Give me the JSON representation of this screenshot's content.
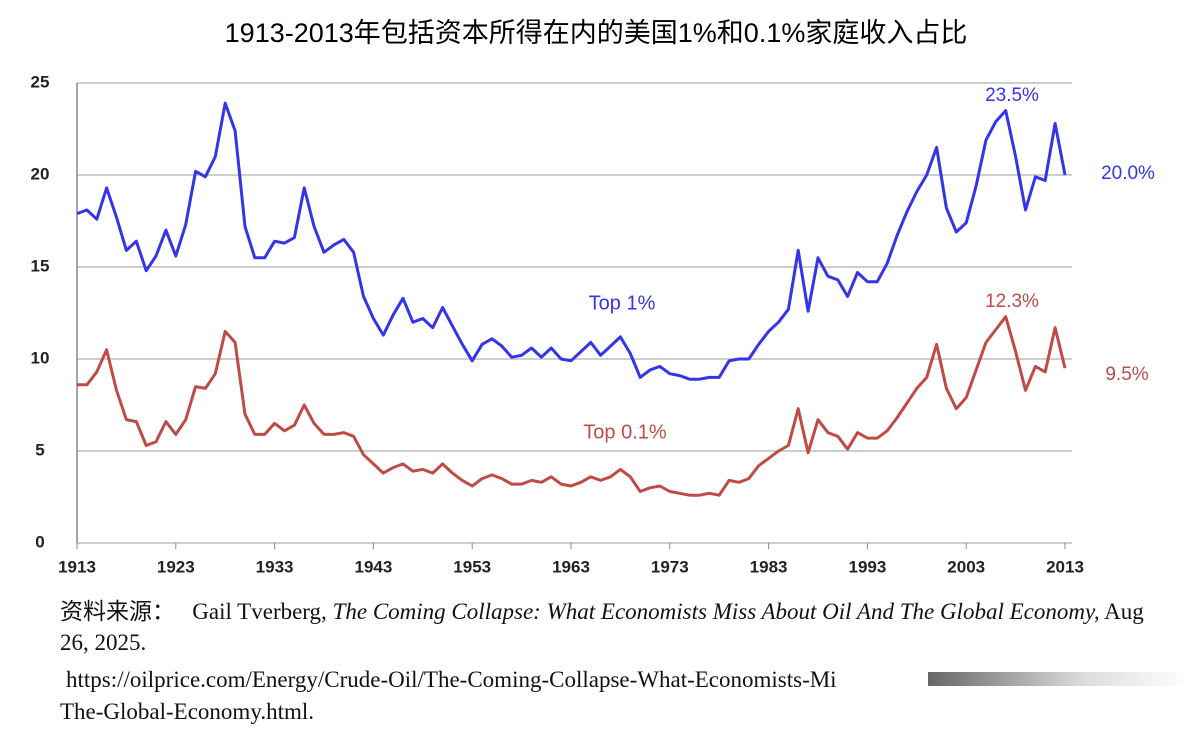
{
  "chart_data": {
    "type": "line",
    "title": "1913-2013年包括资本所得在内的美国1%和0.1%家庭收入占比",
    "x": [
      1913,
      1914,
      1915,
      1916,
      1917,
      1918,
      1919,
      1920,
      1921,
      1922,
      1923,
      1924,
      1925,
      1926,
      1927,
      1928,
      1929,
      1930,
      1931,
      1932,
      1933,
      1934,
      1935,
      1936,
      1937,
      1938,
      1939,
      1940,
      1941,
      1942,
      1943,
      1944,
      1945,
      1946,
      1947,
      1948,
      1949,
      1950,
      1951,
      1952,
      1953,
      1954,
      1955,
      1956,
      1957,
      1958,
      1959,
      1960,
      1961,
      1962,
      1963,
      1964,
      1965,
      1966,
      1967,
      1968,
      1969,
      1970,
      1971,
      1972,
      1973,
      1974,
      1975,
      1976,
      1977,
      1978,
      1979,
      1980,
      1981,
      1982,
      1983,
      1984,
      1985,
      1986,
      1987,
      1988,
      1989,
      1990,
      1991,
      1992,
      1993,
      1994,
      1995,
      1996,
      1997,
      1998,
      1999,
      2000,
      2001,
      2002,
      2003,
      2004,
      2005,
      2006,
      2007,
      2008,
      2009,
      2010,
      2011,
      2012,
      2013
    ],
    "series": [
      {
        "name": "Top 1%",
        "color": "#3434e8",
        "values": [
          17.9,
          18.1,
          17.6,
          19.3,
          17.7,
          15.9,
          16.4,
          14.8,
          15.6,
          17.0,
          15.6,
          17.3,
          20.2,
          19.9,
          21.0,
          23.9,
          22.4,
          17.2,
          15.5,
          15.5,
          16.4,
          16.3,
          16.6,
          19.3,
          17.2,
          15.8,
          16.2,
          16.5,
          15.8,
          13.4,
          12.2,
          11.3,
          12.4,
          13.3,
          12.0,
          12.2,
          11.7,
          12.8,
          11.8,
          10.8,
          9.9,
          10.8,
          11.1,
          10.7,
          10.1,
          10.2,
          10.6,
          10.1,
          10.6,
          10.0,
          9.9,
          10.4,
          10.9,
          10.2,
          10.7,
          11.2,
          10.3,
          9.0,
          9.4,
          9.6,
          9.2,
          9.1,
          8.9,
          8.9,
          9.0,
          9.0,
          9.9,
          10.0,
          10.0,
          10.8,
          11.5,
          12.0,
          12.7,
          15.9,
          12.6,
          15.5,
          14.5,
          14.3,
          13.4,
          14.7,
          14.2,
          14.2,
          15.2,
          16.7,
          18.0,
          19.1,
          20.0,
          21.5,
          18.2,
          16.9,
          17.4,
          19.4,
          21.9,
          22.9,
          23.5,
          21.0,
          18.1,
          19.9,
          19.7,
          22.8,
          20.0
        ]
      },
      {
        "name": "Top 0.1%",
        "color": "#be4b48",
        "values": [
          8.6,
          8.6,
          9.3,
          10.5,
          8.3,
          6.7,
          6.6,
          5.3,
          5.5,
          6.6,
          5.9,
          6.7,
          8.5,
          8.4,
          9.2,
          11.5,
          10.9,
          7.0,
          5.9,
          5.9,
          6.5,
          6.1,
          6.4,
          7.5,
          6.5,
          5.9,
          5.9,
          6.0,
          5.8,
          4.8,
          4.3,
          3.8,
          4.1,
          4.3,
          3.9,
          4.0,
          3.8,
          4.3,
          3.8,
          3.4,
          3.1,
          3.5,
          3.7,
          3.5,
          3.2,
          3.2,
          3.4,
          3.3,
          3.6,
          3.2,
          3.1,
          3.3,
          3.6,
          3.4,
          3.6,
          4.0,
          3.6,
          2.8,
          3.0,
          3.1,
          2.8,
          2.7,
          2.6,
          2.6,
          2.7,
          2.6,
          3.4,
          3.3,
          3.5,
          4.2,
          4.6,
          5.0,
          5.3,
          7.3,
          4.9,
          6.7,
          6.0,
          5.8,
          5.1,
          6.0,
          5.7,
          5.7,
          6.1,
          6.8,
          7.6,
          8.4,
          9.0,
          10.8,
          8.4,
          7.3,
          7.9,
          9.4,
          10.9,
          11.6,
          12.3,
          10.4,
          8.3,
          9.6,
          9.3,
          11.7,
          9.5
        ]
      }
    ],
    "annotations": [
      "23.5%",
      "20.0%",
      "12.3%",
      "9.5%"
    ],
    "xlim": [
      1913,
      2013
    ],
    "xticks": [
      1913,
      1923,
      1933,
      1943,
      1953,
      1963,
      1973,
      1983,
      1993,
      2003,
      2013
    ],
    "ylim": [
      0,
      25
    ],
    "yticks": [
      0,
      5,
      10,
      15,
      20,
      25
    ],
    "grid": true
  },
  "source": {
    "label": "资料来源：",
    "author": "Gail Tverberg,",
    "title": "The Coming Collapse: What Economists Miss About Oil And The Global Economy,",
    "date": "Aug 26, 2025.",
    "url_line1": "https://oilprice.com/Energy/Crude-Oil/The-Coming-Collapse-What-Economists-Mi",
    "url_line2": "The-Global-Economy.html."
  }
}
